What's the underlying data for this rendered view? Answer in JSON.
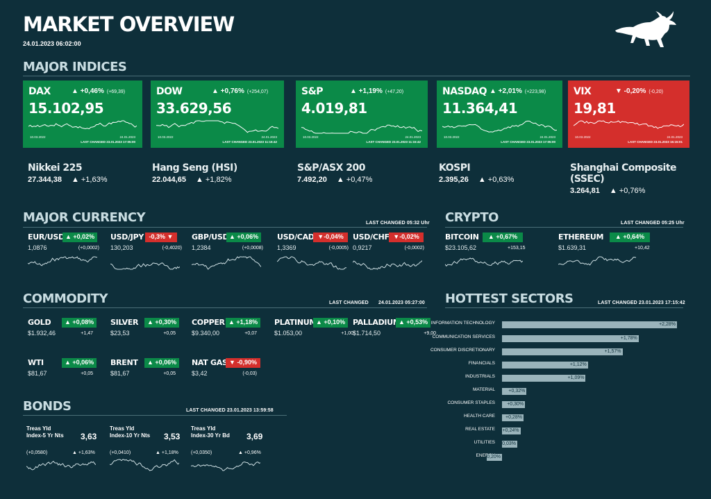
{
  "header": {
    "title": "MARKET OVERVIEW",
    "timestamp": "24.01.2023 06:02:00",
    "logo": "bull-logo"
  },
  "indices": {
    "title": "MAJOR INDICES",
    "cards": [
      {
        "name": "DAX",
        "change": "▲ +0,46%",
        "abs": "(+69,39)",
        "value": "15.102,95",
        "date_start": "10.03.2022",
        "date_end": "24.01.2023",
        "last_changed": "LAST CHANGED 23.01.2023 17:05:00",
        "color": "#0b8a48"
      },
      {
        "name": "DOW",
        "change": "▲ +0,76%",
        "abs": "(+254,07)",
        "value": "33.629,56",
        "date_start": "10.03.2022",
        "date_end": "24.01.2023",
        "last_changed": "LAST CHANGED 23.01.2023 11:15:42",
        "color": "#0b8a48"
      },
      {
        "name": "S&P",
        "change": "▲ +1,19%",
        "abs": "(+47,20)",
        "value": "4.019,81",
        "date_start": "10.03.2022",
        "date_end": "24.01.2023",
        "last_changed": "LAST CHANGED 23.01.2023 11:15:42",
        "color": "#0b8a48"
      },
      {
        "name": "NASDAQ",
        "change": "▲ +2,01%",
        "abs": "(+223,98)",
        "value": "11.364,41",
        "date_start": "10.03.2022",
        "date_end": "24.01.2023",
        "last_changed": "LAST CHANGED 23.01.2023 17:05:00",
        "color": "#0b8a48"
      },
      {
        "name": "VIX",
        "change": "▼ -0,20%",
        "abs": "(-0,20)",
        "value": "19,81",
        "date_start": "10.03.2022",
        "date_end": "24.01.2023",
        "last_changed": "LAST CHANGED 23.01.2023 15:15:01",
        "color": "#d42f2c"
      }
    ],
    "minor": [
      {
        "name": "Nikkei 225",
        "value": "27.344,38",
        "change": "▲ +1,63%"
      },
      {
        "name": "Hang Seng (HSI)",
        "value": "22.044,65",
        "change": "▲ +1,82%"
      },
      {
        "name": "S&P/ASX 200",
        "value": "7.492,20",
        "change": "▲ +0,47%"
      },
      {
        "name": "KOSPI",
        "value": "2.395,26",
        "change": "▲ +0,63%"
      },
      {
        "name": "Shanghai Composite (SSEC)",
        "value": "3.264,81",
        "change": "▲ +0,76%"
      }
    ]
  },
  "currency": {
    "title": "MAJOR CURRENCY",
    "last_changed": "LAST CHANGED 05:32 Uhr",
    "items": [
      {
        "name": "EUR/USD",
        "badge": "▲ +0,02%",
        "dir": "up",
        "price": "1,0876",
        "abs": "(+0,0002)"
      },
      {
        "name": "USD/JPY",
        "badge": "-0,3% ▼",
        "dir": "down",
        "price": "130,203",
        "abs": "(-0,4020)"
      },
      {
        "name": "GBP/USD",
        "badge": "▲ +0,06%",
        "dir": "up",
        "price": "1,2384",
        "abs": "(+0,0008)"
      },
      {
        "name": "USD/CAD",
        "badge": "▼-0,04%",
        "dir": "down",
        "price": "1,3369",
        "abs": "(-0,0005)"
      },
      {
        "name": "USD/CHF",
        "badge": "▼-0,02%",
        "dir": "down",
        "price": "0,9217",
        "abs": "(-0,0002)"
      }
    ]
  },
  "crypto": {
    "title": "CRYPTO",
    "last_changed": "LAST CHANGED 05:25 Uhr",
    "items": [
      {
        "name": "BITCOIN",
        "badge": "▲ +0,67%",
        "price": "$23.105,62",
        "abs": "+153,15"
      },
      {
        "name": "ETHEREUM",
        "badge": "▲ +0,64%",
        "price": "$1.639,31",
        "abs": "+10,42"
      }
    ]
  },
  "commodity": {
    "title": "COMMODITY",
    "last_changed_label": "LAST CHANGED",
    "last_changed": "24.01.2023 05:27:00",
    "items": [
      {
        "name": "GOLD",
        "badge": "▲ +0,08%",
        "dir": "up",
        "price": "$1.932,46",
        "abs": "+1,47"
      },
      {
        "name": "SILVER",
        "badge": "▲ +0,30%",
        "dir": "up",
        "price": "$23,53",
        "abs": "+0,05"
      },
      {
        "name": "COPPER",
        "badge": "▲ +1,18%",
        "dir": "up",
        "price": "$9.340,00",
        "abs": "+0,07"
      },
      {
        "name": "PLATINUM",
        "badge": "▲ +0,10%",
        "dir": "up",
        "price": "$1.053,00",
        "abs": "+1,00"
      },
      {
        "name": "PALLADIUM",
        "badge": "▲ +0,53%",
        "dir": "up",
        "price": "$1.714,50",
        "abs": "+9,00"
      },
      {
        "name": "WTI",
        "badge": "▲ +0,06%",
        "dir": "up",
        "price": "$81,67",
        "abs": "+0,05"
      },
      {
        "name": "BRENT",
        "badge": "▲ +0,06%",
        "dir": "up",
        "price": "$81,67",
        "abs": "+0,05"
      },
      {
        "name": "NAT GAS",
        "badge": "▼ -0,90%",
        "dir": "down",
        "price": "$3,42",
        "abs": "(-0,03)"
      }
    ]
  },
  "bonds": {
    "title": "BONDS",
    "last_changed": "LAST CHANGED 23.01.2023 13:59:58",
    "items": [
      {
        "name": "Treas Yld Index-5 Yr Nts",
        "value": "3,63",
        "abs": "(+0,0580)",
        "change": "▲ +1,63%"
      },
      {
        "name": "Treas Yld Index-10 Yr Nts",
        "value": "3,53",
        "abs": "(+0,0410)",
        "change": "▲ +1,18%"
      },
      {
        "name": "Treas Yld Index-30 Yr Bd",
        "value": "3,69",
        "abs": "(+0,0350)",
        "change": "▲ +0,96%"
      }
    ]
  },
  "sectors": {
    "title": "HOTTEST SECTORS",
    "last_changed": "LAST CHANGED 23.01.2023 17:15:42",
    "chart_data": {
      "type": "bar",
      "categories": [
        "INFORMATION TECHNOLOGY",
        "COMMUNICATION SERVICES",
        "CONSUMER DISCRETIONARY",
        "FINANCIALS",
        "INDUSTRIALS",
        "MATERIAL",
        "CONSUMER STAPLES",
        "HEALTH CARE",
        "REAL ESTATE",
        "UTILITIES",
        "ENERGY"
      ],
      "values": [
        2.28,
        1.78,
        1.57,
        1.12,
        1.09,
        0.32,
        0.3,
        0.28,
        0.24,
        0.03,
        -0.2
      ],
      "labels": [
        "+2,28%",
        "+1,78%",
        "+1,57%",
        "+1,12%",
        "+1,09%",
        "+0,32%",
        "+0,30%",
        "+0,28%",
        "+0,24%",
        "+0,03%",
        "-0,20%"
      ]
    }
  }
}
